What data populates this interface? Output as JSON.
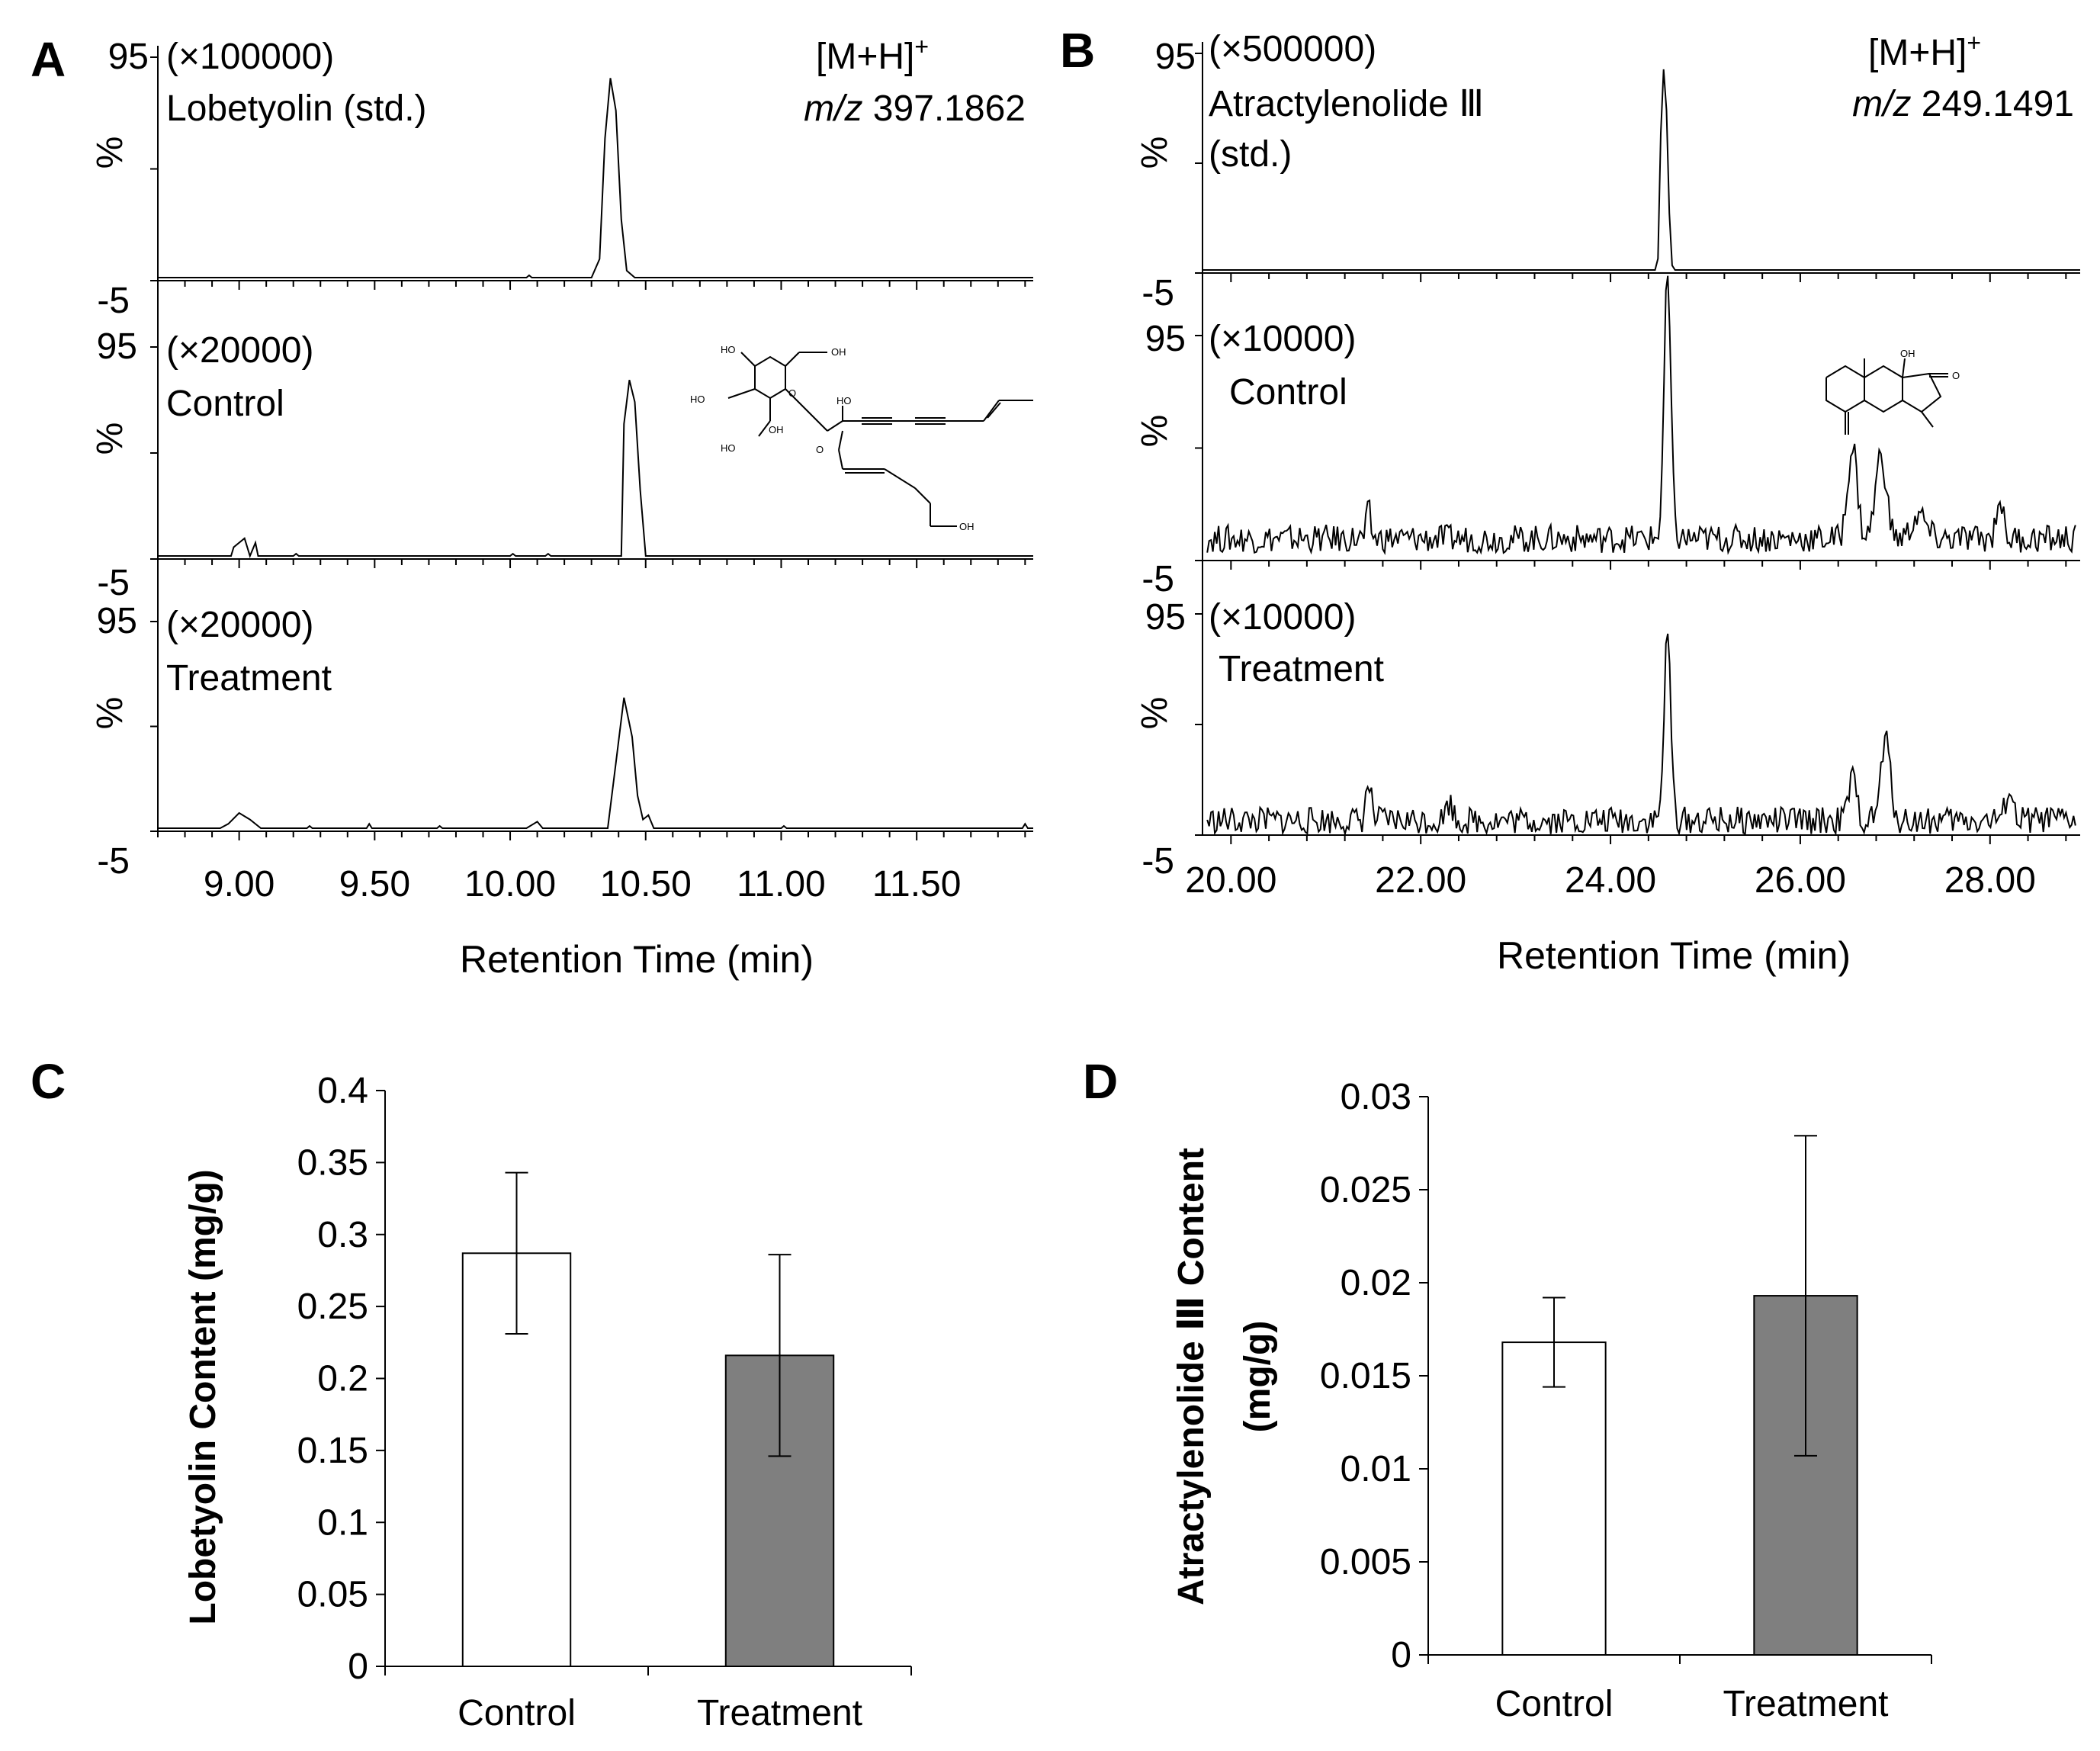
{
  "chart_data": [
    {
      "panel": "A",
      "type": "line",
      "title": "",
      "xlabel": "Retention Time (min)",
      "ylabel": "%",
      "xlim": [
        8.7,
        11.93
      ],
      "ylim": [
        -5,
        95
      ],
      "x_ticks": [
        "9.00",
        "9.50",
        "10.00",
        "10.50",
        "11.00",
        "11.50"
      ],
      "y_ticks": [
        "95",
        "%",
        "-5"
      ],
      "ion": "[M+H]",
      "ion_charge": "+",
      "mz_label": "m/z",
      "mz_value": "397.1862",
      "traces": [
        {
          "name": "Lobetyolin (std.)",
          "scale": "(×100000)",
          "points": [
            [
              8.7,
              0
            ],
            [
              10.06,
              0
            ],
            [
              10.07,
              1
            ],
            [
              10.08,
              0
            ],
            [
              10.3,
              0
            ],
            [
              10.33,
              8
            ],
            [
              10.35,
              60
            ],
            [
              10.37,
              86
            ],
            [
              10.39,
              72
            ],
            [
              10.41,
              25
            ],
            [
              10.43,
              3
            ],
            [
              10.46,
              0
            ],
            [
              11.93,
              0
            ]
          ]
        },
        {
          "name": "Control",
          "scale": "(×20000)",
          "points": [
            [
              8.7,
              0
            ],
            [
              8.97,
              0
            ],
            [
              8.98,
              4
            ],
            [
              9.02,
              8
            ],
            [
              9.04,
              0
            ],
            [
              9.06,
              6
            ],
            [
              9.07,
              0
            ],
            [
              9.2,
              0
            ],
            [
              9.21,
              1
            ],
            [
              9.22,
              0
            ],
            [
              10.0,
              0
            ],
            [
              10.01,
              1
            ],
            [
              10.02,
              0
            ],
            [
              10.13,
              0
            ],
            [
              10.14,
              1
            ],
            [
              10.15,
              0
            ],
            [
              10.41,
              0
            ],
            [
              10.42,
              60
            ],
            [
              10.44,
              80
            ],
            [
              10.46,
              70
            ],
            [
              10.48,
              30
            ],
            [
              10.5,
              0
            ],
            [
              11.93,
              0
            ]
          ]
        },
        {
          "name": "Treatment",
          "scale": "(×20000)",
          "points": [
            [
              8.7,
              0
            ],
            [
              8.93,
              0
            ],
            [
              8.96,
              2
            ],
            [
              9.0,
              7
            ],
            [
              9.04,
              4
            ],
            [
              9.08,
              0
            ],
            [
              9.25,
              0
            ],
            [
              9.26,
              1
            ],
            [
              9.27,
              0
            ],
            [
              9.47,
              0
            ],
            [
              9.48,
              2
            ],
            [
              9.49,
              0
            ],
            [
              9.73,
              0
            ],
            [
              9.74,
              1
            ],
            [
              9.75,
              0
            ],
            [
              10.06,
              0
            ],
            [
              10.1,
              3
            ],
            [
              10.12,
              0
            ],
            [
              10.36,
              0
            ],
            [
              10.39,
              30
            ],
            [
              10.42,
              60
            ],
            [
              10.45,
              42
            ],
            [
              10.47,
              15
            ],
            [
              10.49,
              4
            ],
            [
              10.51,
              6
            ],
            [
              10.53,
              0
            ],
            [
              11.0,
              0
            ],
            [
              11.01,
              1
            ],
            [
              11.02,
              0
            ],
            [
              11.89,
              0
            ],
            [
              11.9,
              2
            ],
            [
              11.91,
              0
            ],
            [
              11.93,
              0
            ]
          ]
        }
      ],
      "structure_labels": [
        "HO",
        "OH",
        "HO",
        "O",
        "HO",
        "O",
        "OH",
        "HO",
        "OH"
      ]
    },
    {
      "panel": "B",
      "type": "line",
      "title": "",
      "xlabel": "Retention Time (min)",
      "ylabel": "%",
      "xlim": [
        19.7,
        28.95
      ],
      "ylim": [
        -5,
        95
      ],
      "x_ticks": [
        "20.00",
        "22.00",
        "24.00",
        "26.00",
        "28.00"
      ],
      "y_ticks": [
        "95",
        "%",
        "-5"
      ],
      "ion": "[M+H]",
      "ion_charge": "+",
      "mz_label": "m/z",
      "mz_value": "249.1491",
      "traces": [
        {
          "name": "Atractylenolide Ⅲ",
          "name_line2": "(std.)",
          "scale": "(×500000)",
          "points": [
            [
              19.7,
              0
            ],
            [
              24.47,
              0
            ],
            [
              24.5,
              5
            ],
            [
              24.53,
              60
            ],
            [
              24.56,
              88
            ],
            [
              24.59,
              70
            ],
            [
              24.62,
              25
            ],
            [
              24.65,
              2
            ],
            [
              24.68,
              0
            ],
            [
              28.95,
              0
            ]
          ]
        },
        {
          "name": "Control",
          "scale": "(×10000)",
          "noise_base": 8,
          "noise_amp": 6,
          "peaks": [
            [
              24.6,
              112,
              0.05
            ],
            [
              21.45,
              12,
              0.03
            ],
            [
              26.55,
              40,
              0.07
            ],
            [
              26.85,
              36,
              0.08
            ],
            [
              27.25,
              10,
              0.1
            ],
            [
              28.1,
              18,
              0.05
            ]
          ]
        },
        {
          "name": "Treatment",
          "scale": "(×10000)",
          "noise_base": 5,
          "noise_amp": 6,
          "peaks": [
            [
              24.6,
              80,
              0.05
            ],
            [
              21.45,
              16,
              0.04
            ],
            [
              22.3,
              8,
              0.05
            ],
            [
              26.55,
              18,
              0.06
            ],
            [
              26.9,
              35,
              0.07
            ],
            [
              28.2,
              14,
              0.05
            ]
          ]
        }
      ],
      "structure_labels": [
        "OH",
        "O"
      ]
    },
    {
      "panel": "C",
      "type": "bar",
      "title": "",
      "xlabel": "",
      "ylabel": "Lobetyolin Content (mg/g)",
      "ylim": [
        0,
        0.4
      ],
      "y_ticks": [
        "0",
        "0.05",
        "0.1",
        "0.15",
        "0.2",
        "0.25",
        "0.3",
        "0.35",
        "0.4"
      ],
      "categories": [
        "Control",
        "Treatment"
      ],
      "values": [
        0.287,
        0.216
      ],
      "errors": [
        0.056,
        0.07
      ],
      "colors": [
        "#ffffff",
        "#7f7f7f"
      ]
    },
    {
      "panel": "D",
      "type": "bar",
      "title": "",
      "xlabel": "",
      "ylabel": "Atractylenolide Ⅲ Content",
      "ylabel_line2": "(mg/g)",
      "ylim": [
        0,
        0.03
      ],
      "y_ticks": [
        "0",
        "0.005",
        "0.01",
        "0.015",
        "0.02",
        "0.025",
        "0.03"
      ],
      "categories": [
        "Control",
        "Treatment"
      ],
      "values": [
        0.0168,
        0.0193
      ],
      "errors": [
        0.0024,
        0.0086
      ],
      "colors": [
        "#ffffff",
        "#7f7f7f"
      ]
    }
  ]
}
